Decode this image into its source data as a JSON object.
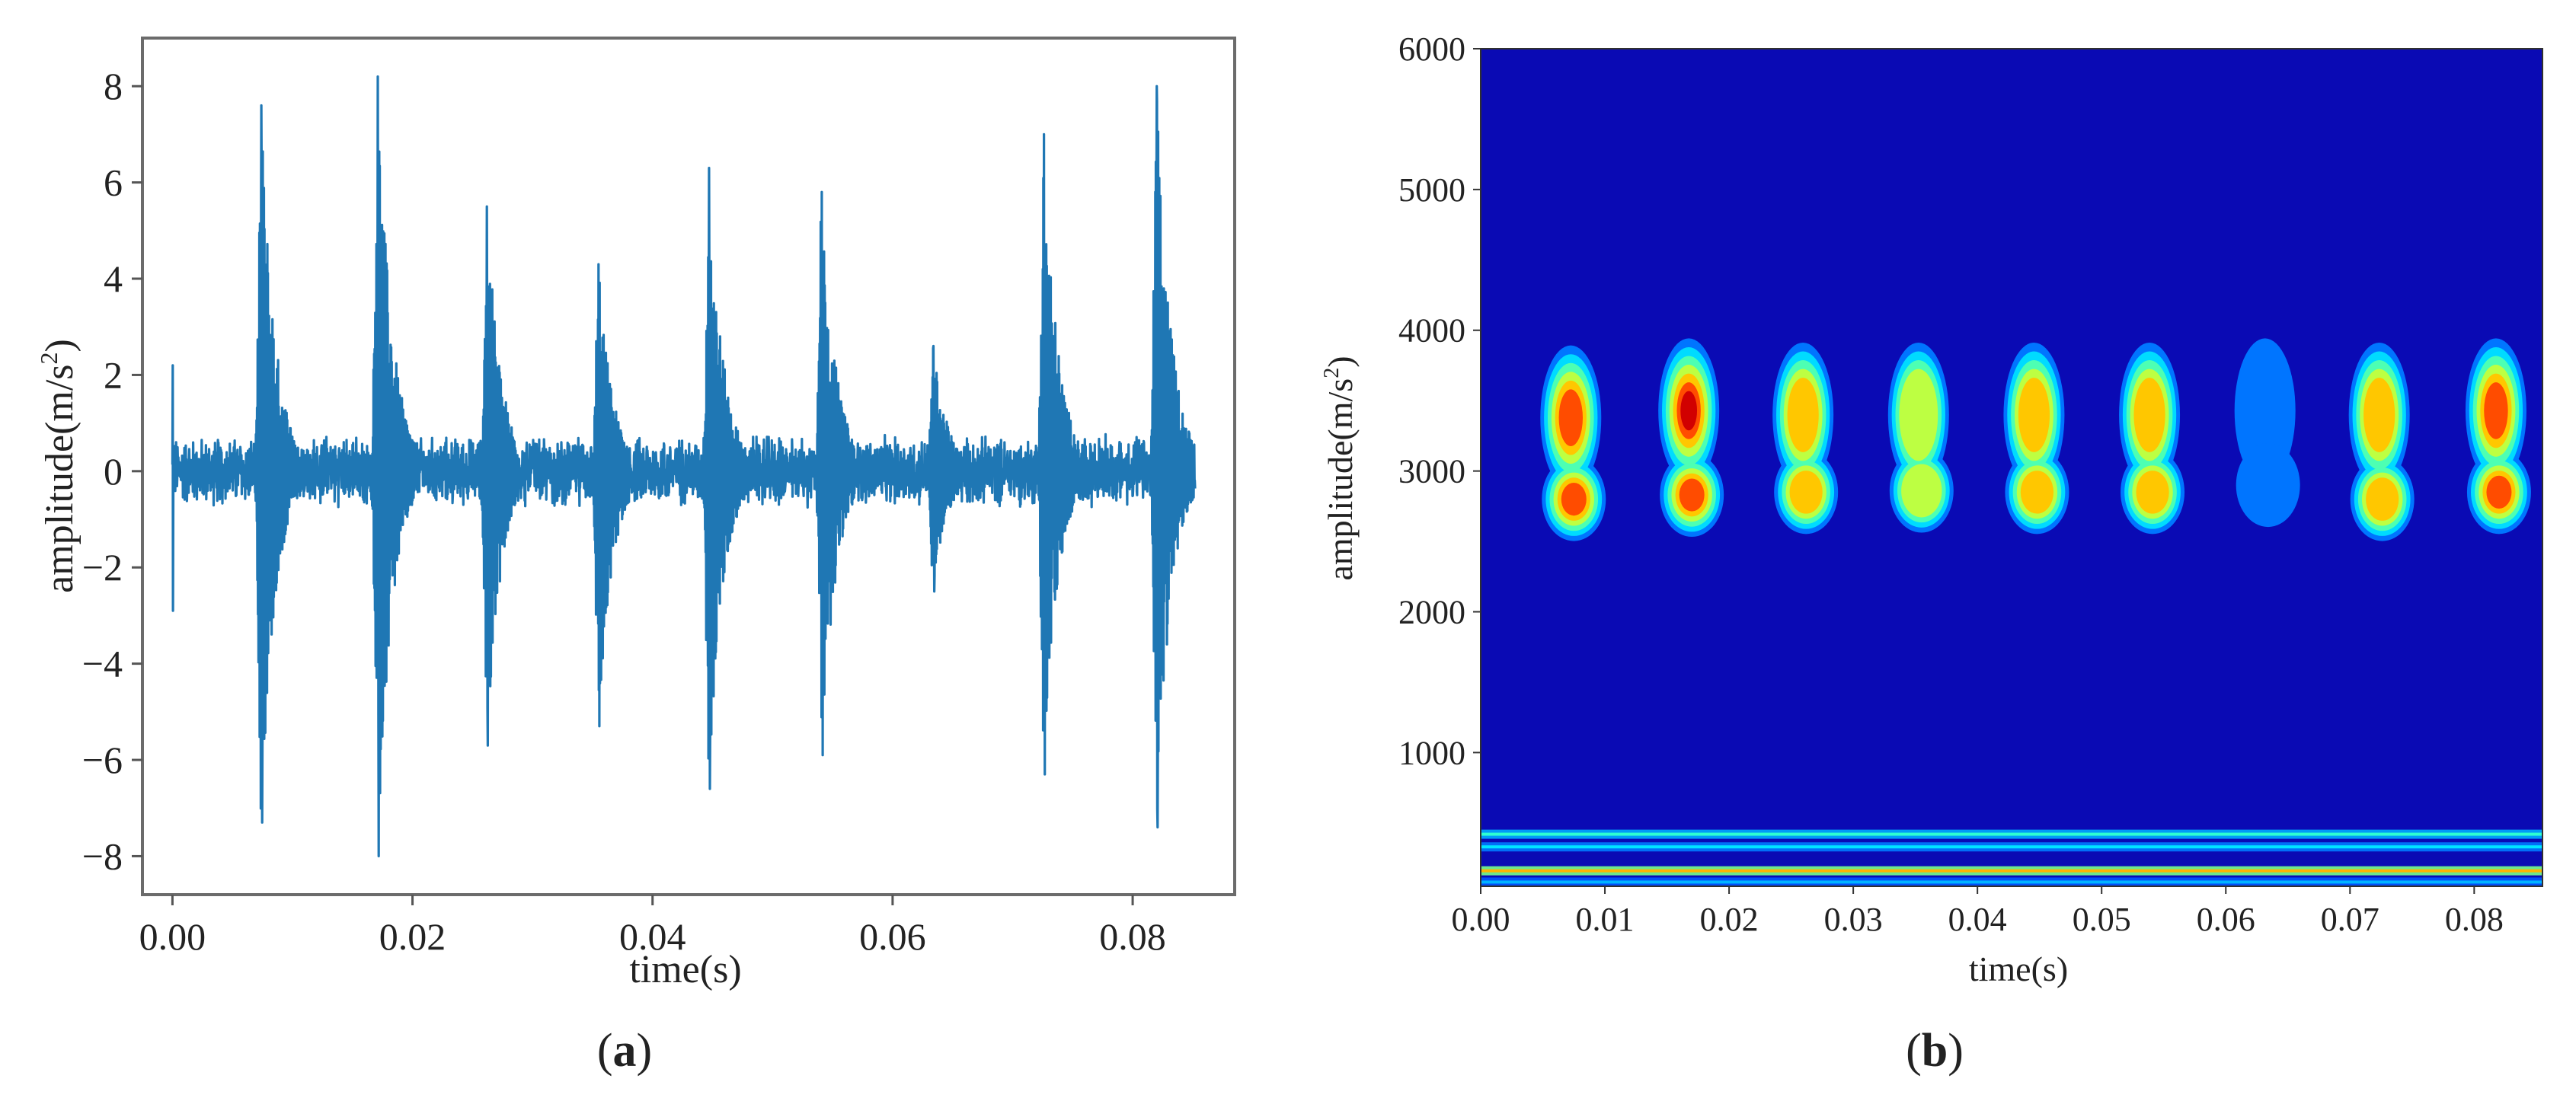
{
  "panels": [
    {
      "label_open": "(",
      "label_letter": "a",
      "label_close": ")"
    },
    {
      "label_open": "(",
      "label_letter": "b",
      "label_close": ")"
    }
  ],
  "chart_data": [
    {
      "type": "line",
      "title": "",
      "xlabel": "time(s)",
      "ylabel_main": "amplitude(m/s",
      "ylabel_sup": "2",
      "ylabel_close": ")",
      "xlim": [
        -0.0025,
        0.0885
      ],
      "ylim": [
        -8.8,
        9.0
      ],
      "xticks": [
        0.0,
        0.02,
        0.04,
        0.06,
        0.08
      ],
      "xtick_labels": [
        "0.00",
        "0.02",
        "0.04",
        "0.06",
        "0.08"
      ],
      "yticks": [
        8,
        6,
        4,
        2,
        0,
        -2,
        -4,
        -6,
        -8
      ],
      "ytick_labels": [
        "8",
        "6",
        "4",
        "2",
        "0",
        "−2",
        "−4",
        "−6",
        "−8"
      ],
      "grid": false,
      "line_color": "#1f77b4",
      "series": [
        {
          "impulse_times_s": [
            0.0074,
            0.0171,
            0.0262,
            0.0355,
            0.0447,
            0.0541,
            0.0634,
            0.0726,
            0.082
          ],
          "impulse_peak_pos": [
            7.6,
            8.2,
            5.5,
            4.3,
            6.3,
            5.8,
            2.6,
            7.0,
            8.0
          ],
          "impulse_peak_neg": [
            -7.3,
            -8.0,
            -5.7,
            -5.3,
            -6.6,
            -5.9,
            -2.5,
            -6.3,
            -7.4
          ],
          "start_spike": [
            2.2,
            -2.9
          ],
          "end_time_s": 0.0852,
          "baseline_noise": 0.6
        }
      ]
    },
    {
      "type": "heatmap",
      "title": "",
      "xlabel": "time(s)",
      "ylabel_main": "amplitude(m/s",
      "ylabel_sup": "2",
      "ylabel_close": ")",
      "xlim": [
        0.0,
        0.0855
      ],
      "ylim": [
        50,
        6000
      ],
      "xticks": [
        0.0,
        0.01,
        0.02,
        0.03,
        0.04,
        0.05,
        0.06,
        0.07,
        0.08
      ],
      "xtick_labels": [
        "0.00",
        "0.01",
        "0.02",
        "0.03",
        "0.04",
        "0.05",
        "0.06",
        "0.07",
        "0.08"
      ],
      "yticks": [
        6000,
        5000,
        4000,
        3000,
        2000,
        1000
      ],
      "ytick_labels": [
        "6000",
        "5000",
        "4000",
        "3000",
        "2000",
        "1000"
      ],
      "colormap": "jet",
      "background_color": "#0a0ab4",
      "blobs": [
        {
          "time_s": 0.0075,
          "upper_hz": 3400,
          "lower_hz": 2800,
          "intensity": 0.82
        },
        {
          "time_s": 0.017,
          "upper_hz": 3450,
          "lower_hz": 2830,
          "intensity": 0.9
        },
        {
          "time_s": 0.0262,
          "upper_hz": 3420,
          "lower_hz": 2850,
          "intensity": 0.68
        },
        {
          "time_s": 0.0355,
          "upper_hz": 3420,
          "lower_hz": 2860,
          "intensity": 0.62
        },
        {
          "time_s": 0.0448,
          "upper_hz": 3420,
          "lower_hz": 2850,
          "intensity": 0.72
        },
        {
          "time_s": 0.0541,
          "upper_hz": 3420,
          "lower_hz": 2850,
          "intensity": 0.72
        },
        {
          "time_s": 0.0634,
          "upper_hz": 3450,
          "lower_hz": 2900,
          "intensity": 0.3
        },
        {
          "time_s": 0.0726,
          "upper_hz": 3420,
          "lower_hz": 2800,
          "intensity": 0.72
        },
        {
          "time_s": 0.082,
          "upper_hz": 3450,
          "lower_hz": 2850,
          "intensity": 0.86
        }
      ],
      "low_bands_hz": [
        {
          "freq_hz": 160,
          "intensity": 0.7
        },
        {
          "freq_hz": 330,
          "intensity": 0.35
        },
        {
          "freq_hz": 420,
          "intensity": 0.42
        },
        {
          "freq_hz": 80,
          "intensity": 0.3
        }
      ]
    }
  ]
}
